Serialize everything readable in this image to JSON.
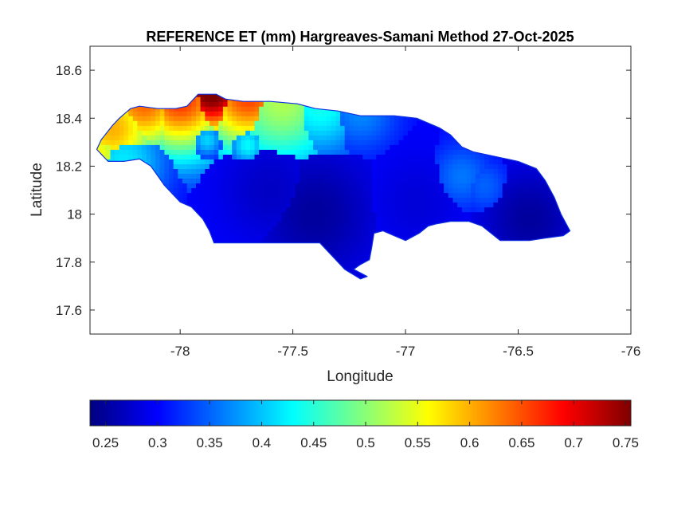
{
  "chart_data": {
    "type": "heatmap",
    "title": "REFERENCE ET (mm) Hargreaves-Samani Method  27-Oct-2025",
    "xlabel": "Longitude",
    "ylabel": "Latitude",
    "xlim": [
      -78.4,
      -76
    ],
    "ylim": [
      17.5,
      18.7
    ],
    "xticks": [
      -78,
      -77.5,
      -77,
      -76.5,
      -76
    ],
    "xtick_labels": [
      "-78",
      "-77.5",
      "-77",
      "-76.5",
      "-76"
    ],
    "yticks": [
      17.6,
      17.8,
      18,
      18.2,
      18.4,
      18.6
    ],
    "ytick_labels": [
      "17.6",
      "17.8",
      "18",
      "18.2",
      "18.4",
      "18.6"
    ],
    "grid": false,
    "colormap": "jet",
    "colorbar": {
      "orientation": "horizontal",
      "placement": "below",
      "range": [
        0.235,
        0.755
      ],
      "ticks": [
        0.25,
        0.3,
        0.35,
        0.4,
        0.45,
        0.5,
        0.55,
        0.6,
        0.65,
        0.7,
        0.75
      ],
      "tick_labels": [
        "0.25",
        "0.3",
        "0.35",
        "0.4",
        "0.45",
        "0.5",
        "0.55",
        "0.6",
        "0.65",
        "0.7",
        "0.75"
      ]
    },
    "region_outline": [
      [
        -78.37,
        18.27
      ],
      [
        -78.35,
        18.31
      ],
      [
        -78.3,
        18.37
      ],
      [
        -78.27,
        18.4
      ],
      [
        -78.22,
        18.44
      ],
      [
        -78.18,
        18.45
      ],
      [
        -78.1,
        18.44
      ],
      [
        -78.02,
        18.44
      ],
      [
        -77.97,
        18.45
      ],
      [
        -77.94,
        18.48
      ],
      [
        -77.92,
        18.5
      ],
      [
        -77.84,
        18.5
      ],
      [
        -77.8,
        18.48
      ],
      [
        -77.72,
        18.47
      ],
      [
        -77.6,
        18.47
      ],
      [
        -77.48,
        18.46
      ],
      [
        -77.4,
        18.44
      ],
      [
        -77.3,
        18.43
      ],
      [
        -77.2,
        18.41
      ],
      [
        -77.05,
        18.41
      ],
      [
        -76.95,
        18.4
      ],
      [
        -76.9,
        18.38
      ],
      [
        -76.85,
        18.36
      ],
      [
        -76.8,
        18.33
      ],
      [
        -76.75,
        18.28
      ],
      [
        -76.7,
        18.26
      ],
      [
        -76.6,
        18.24
      ],
      [
        -76.5,
        18.22
      ],
      [
        -76.42,
        18.19
      ],
      [
        -76.38,
        18.14
      ],
      [
        -76.34,
        18.07
      ],
      [
        -76.31,
        18.0
      ],
      [
        -76.27,
        17.93
      ],
      [
        -76.3,
        17.91
      ],
      [
        -76.38,
        17.9
      ],
      [
        -76.45,
        17.89
      ],
      [
        -76.52,
        17.89
      ],
      [
        -76.58,
        17.89
      ],
      [
        -76.62,
        17.92
      ],
      [
        -76.66,
        17.95
      ],
      [
        -76.72,
        17.97
      ],
      [
        -76.8,
        17.97
      ],
      [
        -76.86,
        17.96
      ],
      [
        -76.9,
        17.95
      ],
      [
        -76.94,
        17.92
      ],
      [
        -77.0,
        17.89
      ],
      [
        -77.05,
        17.91
      ],
      [
        -77.1,
        17.93
      ],
      [
        -77.14,
        17.92
      ],
      [
        -77.15,
        17.86
      ],
      [
        -77.16,
        17.81
      ],
      [
        -77.2,
        17.79
      ],
      [
        -77.23,
        17.77
      ],
      [
        -77.17,
        17.74
      ],
      [
        -77.2,
        17.73
      ],
      [
        -77.27,
        17.77
      ],
      [
        -77.3,
        17.8
      ],
      [
        -77.34,
        17.84
      ],
      [
        -77.38,
        17.88
      ],
      [
        -77.46,
        17.88
      ],
      [
        -77.55,
        17.88
      ],
      [
        -77.65,
        17.88
      ],
      [
        -77.75,
        17.88
      ],
      [
        -77.85,
        17.88
      ],
      [
        -77.87,
        17.93
      ],
      [
        -77.9,
        17.98
      ],
      [
        -77.95,
        18.03
      ],
      [
        -78.0,
        18.05
      ],
      [
        -78.03,
        18.08
      ],
      [
        -78.07,
        18.12
      ],
      [
        -78.1,
        18.16
      ],
      [
        -78.13,
        18.2
      ],
      [
        -78.18,
        18.23
      ],
      [
        -78.25,
        18.22
      ],
      [
        -78.32,
        18.22
      ],
      [
        -78.37,
        18.27
      ]
    ],
    "field": {
      "background_value": 0.3,
      "features": [
        {
          "lon": -77.86,
          "lat": 18.52,
          "value": 0.78,
          "radius": 0.15
        },
        {
          "lon": -78.0,
          "lat": 18.49,
          "value": 0.67,
          "radius": 0.18
        },
        {
          "lon": -77.7,
          "lat": 18.5,
          "value": 0.66,
          "radius": 0.18
        },
        {
          "lon": -78.16,
          "lat": 18.47,
          "value": 0.64,
          "radius": 0.17
        },
        {
          "lon": -78.3,
          "lat": 18.36,
          "value": 0.6,
          "radius": 0.18
        },
        {
          "lon": -78.37,
          "lat": 18.26,
          "value": 0.56,
          "radius": 0.12
        },
        {
          "lon": -77.55,
          "lat": 18.48,
          "value": 0.52,
          "radius": 0.22
        },
        {
          "lon": -77.38,
          "lat": 18.46,
          "value": 0.44,
          "radius": 0.16
        },
        {
          "lon": -77.2,
          "lat": 18.43,
          "value": 0.37,
          "radius": 0.12
        },
        {
          "lon": -78.25,
          "lat": 18.22,
          "value": 0.42,
          "radius": 0.14
        },
        {
          "lon": -77.7,
          "lat": 18.29,
          "value": 0.43,
          "radius": 0.06
        },
        {
          "lon": -77.88,
          "lat": 18.31,
          "value": 0.41,
          "radius": 0.05
        },
        {
          "lon": -76.75,
          "lat": 18.16,
          "value": 0.36,
          "radius": 0.1
        },
        {
          "lon": -76.65,
          "lat": 18.12,
          "value": 0.35,
          "radius": 0.08
        },
        {
          "lon": -77.4,
          "lat": 18.0,
          "value": 0.25,
          "radius": 0.2
        },
        {
          "lon": -76.45,
          "lat": 17.98,
          "value": 0.25,
          "radius": 0.16
        },
        {
          "lon": -77.6,
          "lat": 18.1,
          "value": 0.27,
          "radius": 0.16
        },
        {
          "lon": -76.95,
          "lat": 18.05,
          "value": 0.28,
          "radius": 0.15
        }
      ]
    }
  }
}
